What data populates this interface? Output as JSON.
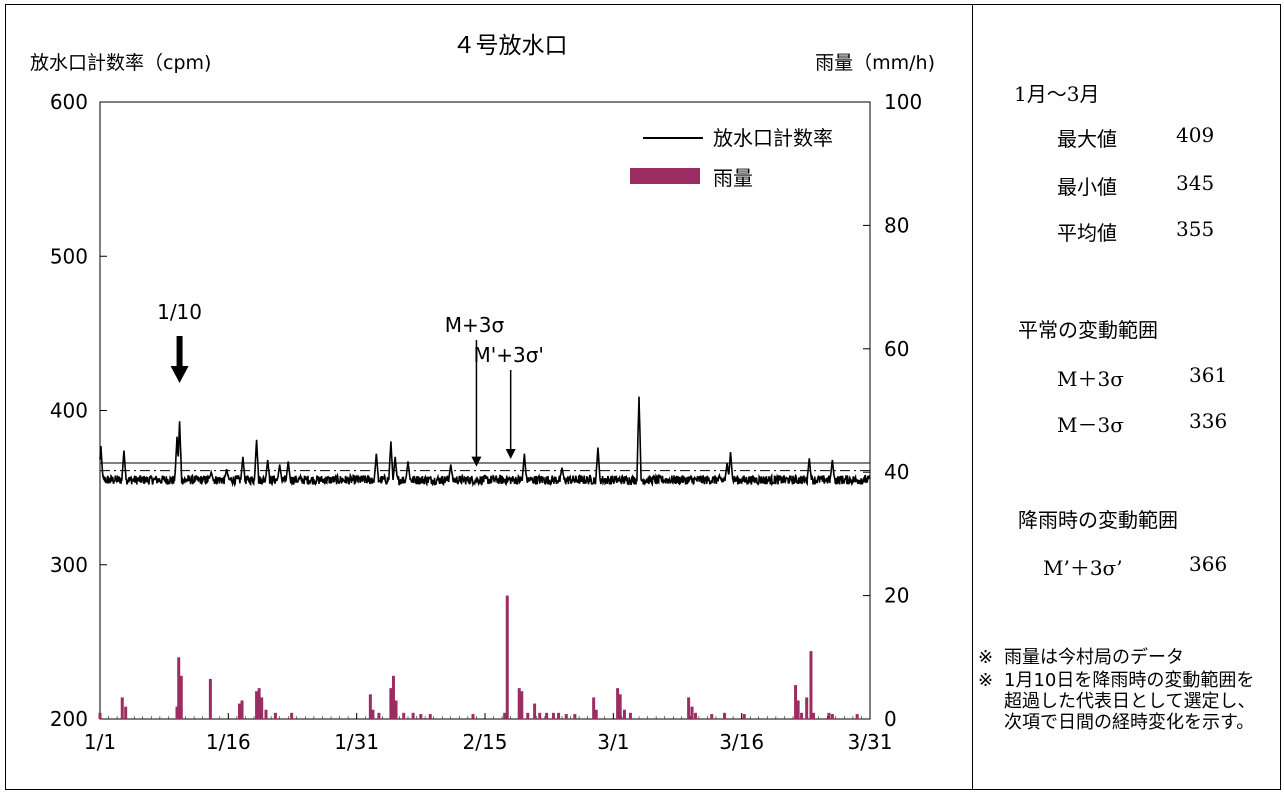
{
  "chart_data": {
    "type": "line",
    "title": "４号放水口",
    "ylabel_left": "放水口計数率（cpm)",
    "ylabel_right": "雨量（mm/h)",
    "yticks_left": [
      "600",
      "500",
      "400",
      "300",
      "200"
    ],
    "yticks_right": [
      "100",
      "80",
      "60",
      "40",
      "20",
      "0"
    ],
    "ylim_left": [
      200,
      600
    ],
    "ylim_right": [
      0,
      100
    ],
    "xticks": [
      "1/1",
      "1/16",
      "1/31",
      "2/15",
      "3/1",
      "3/16",
      "3/31"
    ],
    "xlim_day": [
      1,
      91
    ],
    "legend": {
      "position": "top-right",
      "items": [
        "放水口計数率",
        "雨量"
      ]
    },
    "series": [
      {
        "name": "放水口計数率",
        "axis": "left",
        "color": "#000000",
        "baseline_cpm": 355,
        "noise_cpm": 6,
        "peaks": [
          {
            "day": 1.1,
            "value": 377
          },
          {
            "day": 3.8,
            "value": 374
          },
          {
            "day": 10.3,
            "value": 393
          },
          {
            "day": 10.0,
            "value": 383
          },
          {
            "day": 15.8,
            "value": 362
          },
          {
            "day": 17.7,
            "value": 370
          },
          {
            "day": 19.3,
            "value": 381
          },
          {
            "day": 20.6,
            "value": 368
          },
          {
            "day": 22.0,
            "value": 365
          },
          {
            "day": 23.0,
            "value": 367
          },
          {
            "day": 33.3,
            "value": 372
          },
          {
            "day": 35.0,
            "value": 380
          },
          {
            "day": 35.5,
            "value": 370
          },
          {
            "day": 37.0,
            "value": 367
          },
          {
            "day": 50.6,
            "value": 372
          },
          {
            "day": 59.2,
            "value": 376
          },
          {
            "day": 64.0,
            "value": 409
          },
          {
            "day": 74.7,
            "value": 373
          },
          {
            "day": 74.3,
            "value": 366
          },
          {
            "day": 83.9,
            "value": 369
          },
          {
            "day": 86.6,
            "value": 368
          },
          {
            "day": 42.0,
            "value": 365
          },
          {
            "day": 14.0,
            "value": 360
          },
          {
            "day": 55.0,
            "value": 363
          }
        ]
      },
      {
        "name": "雨量",
        "axis": "right",
        "type": "bar",
        "color": "#9b2d63",
        "bars": [
          {
            "day": 1.0,
            "mm": 1
          },
          {
            "day": 3.6,
            "mm": 3.5
          },
          {
            "day": 4.0,
            "mm": 2
          },
          {
            "day": 10.0,
            "mm": 2
          },
          {
            "day": 10.2,
            "mm": 10
          },
          {
            "day": 10.5,
            "mm": 7
          },
          {
            "day": 13.9,
            "mm": 6.5
          },
          {
            "day": 17.3,
            "mm": 2.5
          },
          {
            "day": 17.6,
            "mm": 3
          },
          {
            "day": 19.3,
            "mm": 4.5
          },
          {
            "day": 19.6,
            "mm": 5
          },
          {
            "day": 19.9,
            "mm": 3.5
          },
          {
            "day": 20.4,
            "mm": 1.5
          },
          {
            "day": 21.5,
            "mm": 1
          },
          {
            "day": 23.4,
            "mm": 1
          },
          {
            "day": 32.6,
            "mm": 4
          },
          {
            "day": 32.9,
            "mm": 1.5
          },
          {
            "day": 33.6,
            "mm": 1
          },
          {
            "day": 35.0,
            "mm": 5
          },
          {
            "day": 35.3,
            "mm": 7
          },
          {
            "day": 35.6,
            "mm": 3
          },
          {
            "day": 36.5,
            "mm": 1
          },
          {
            "day": 37.6,
            "mm": 1
          },
          {
            "day": 38.5,
            "mm": 0.8
          },
          {
            "day": 39.6,
            "mm": 0.8
          },
          {
            "day": 44.6,
            "mm": 0.8
          },
          {
            "day": 48.6,
            "mm": 20
          },
          {
            "day": 48.3,
            "mm": 1
          },
          {
            "day": 50.0,
            "mm": 5
          },
          {
            "day": 50.3,
            "mm": 4.5
          },
          {
            "day": 51.0,
            "mm": 1
          },
          {
            "day": 51.8,
            "mm": 2.5
          },
          {
            "day": 52.4,
            "mm": 1
          },
          {
            "day": 53.2,
            "mm": 1
          },
          {
            "day": 54.0,
            "mm": 1
          },
          {
            "day": 54.6,
            "mm": 1
          },
          {
            "day": 55.5,
            "mm": 0.8
          },
          {
            "day": 56.5,
            "mm": 0.8
          },
          {
            "day": 58.7,
            "mm": 3.5
          },
          {
            "day": 59.0,
            "mm": 1.5
          },
          {
            "day": 61.5,
            "mm": 5
          },
          {
            "day": 61.8,
            "mm": 4
          },
          {
            "day": 62.3,
            "mm": 1.5
          },
          {
            "day": 63.0,
            "mm": 1
          },
          {
            "day": 69.8,
            "mm": 3.5
          },
          {
            "day": 70.2,
            "mm": 2
          },
          {
            "day": 70.6,
            "mm": 1
          },
          {
            "day": 72.5,
            "mm": 0.8
          },
          {
            "day": 74.0,
            "mm": 1
          },
          {
            "day": 76.3,
            "mm": 0.8
          },
          {
            "day": 82.3,
            "mm": 5.5
          },
          {
            "day": 82.6,
            "mm": 3
          },
          {
            "day": 83.0,
            "mm": 1
          },
          {
            "day": 83.6,
            "mm": 3.5
          },
          {
            "day": 84.1,
            "mm": 11
          },
          {
            "day": 84.4,
            "mm": 1
          },
          {
            "day": 86.2,
            "mm": 1
          },
          {
            "day": 86.6,
            "mm": 0.8
          },
          {
            "day": 89.5,
            "mm": 0.8
          }
        ]
      }
    ],
    "reference_lines": [
      {
        "label": "M+3σ",
        "value": 361,
        "style": "dash-dot"
      },
      {
        "label": "M'+3σ'",
        "value": 366,
        "style": "solid"
      }
    ],
    "annotations": [
      {
        "text": "1/10",
        "day": 10.3,
        "arrow": "bold-down"
      },
      {
        "text": "M+3σ",
        "day": 45,
        "target": 361
      },
      {
        "text": "M'+3σ'",
        "day": 49,
        "target": 366
      }
    ]
  },
  "panel": {
    "period": "1月～3月",
    "stats": [
      {
        "label": "最大値",
        "value": "409"
      },
      {
        "label": "最小値",
        "value": "345"
      },
      {
        "label": "平均値",
        "value": "355"
      }
    ],
    "normal_range_title": "平常の変動範囲",
    "normal_range": [
      {
        "label": "M＋3σ",
        "value": "361"
      },
      {
        "label": "M－3σ",
        "value": "336"
      }
    ],
    "rain_range_title": "降雨時の変動範囲",
    "rain_range": [
      {
        "label": "M’＋3σ’",
        "value": "366"
      }
    ],
    "notes": [
      {
        "mark": "※",
        "text": "雨量は今村局のデータ"
      },
      {
        "mark": "※",
        "text": "1月10日を降雨時の変動範囲を超過した代表日として選定し、次項で日間の経時変化を示す。"
      }
    ]
  }
}
